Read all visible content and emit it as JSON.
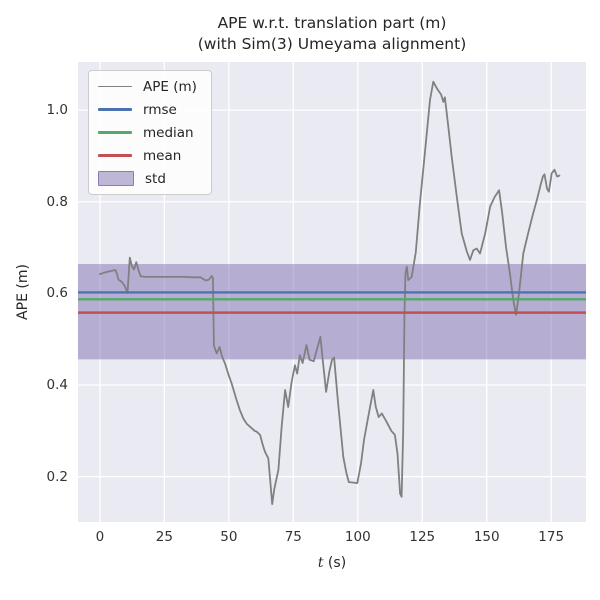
{
  "chart_data": {
    "type": "line",
    "title": "APE w.r.t. translation part (m)",
    "subtitle": "(with Sim(3) Umeyama alignment)",
    "xlabel": "t (s)",
    "xlabel_italic": "t",
    "xlabel_rest": " (s)",
    "ylabel": "APE (m)",
    "xlim": [
      -8.5,
      188.5
    ],
    "ylim": [
      0.101,
      1.105
    ],
    "xticks": [
      0,
      25,
      50,
      75,
      100,
      125,
      150,
      175
    ],
    "yticks": [
      0.2,
      0.4,
      0.6,
      0.8,
      1.0
    ],
    "grid": true,
    "background_color": "#eaeaf2",
    "grid_color": "#ffffff",
    "legend_position": "upper left",
    "series": [
      {
        "name": "std",
        "type": "band",
        "color": "#8172b2",
        "opacity": 0.5,
        "range": [
          0.456,
          0.664
        ]
      },
      {
        "name": "APE (m)",
        "type": "line",
        "color": "#808080",
        "width": 1.8,
        "points": [
          [
            0,
            0.642
          ],
          [
            1.5,
            0.645
          ],
          [
            3,
            0.647
          ],
          [
            4.5,
            0.649
          ],
          [
            6,
            0.651
          ],
          [
            6.6,
            0.643
          ],
          [
            7.2,
            0.63
          ],
          [
            8.5,
            0.625
          ],
          [
            9.6,
            0.616
          ],
          [
            10.7,
            0.601
          ],
          [
            11.6,
            0.678
          ],
          [
            12.4,
            0.659
          ],
          [
            13.2,
            0.652
          ],
          [
            14.1,
            0.668
          ],
          [
            15,
            0.65
          ],
          [
            15.8,
            0.637
          ],
          [
            18,
            0.636
          ],
          [
            21,
            0.636
          ],
          [
            24,
            0.636
          ],
          [
            27,
            0.636
          ],
          [
            30,
            0.636
          ],
          [
            33,
            0.636
          ],
          [
            36,
            0.635
          ],
          [
            39,
            0.635
          ],
          [
            41,
            0.628
          ],
          [
            42.3,
            0.63
          ],
          [
            43.3,
            0.638
          ],
          [
            43.8,
            0.634
          ],
          [
            44.2,
            0.486
          ],
          [
            45.3,
            0.469
          ],
          [
            46.4,
            0.483
          ],
          [
            47.4,
            0.462
          ],
          [
            48.5,
            0.447
          ],
          [
            50,
            0.42
          ],
          [
            51.1,
            0.403
          ],
          [
            53,
            0.367
          ],
          [
            54.3,
            0.345
          ],
          [
            55.6,
            0.327
          ],
          [
            57,
            0.315
          ],
          [
            58.2,
            0.309
          ],
          [
            60,
            0.3
          ],
          [
            60.8,
            0.298
          ],
          [
            62.1,
            0.291
          ],
          [
            63,
            0.272
          ],
          [
            64,
            0.254
          ],
          [
            65.3,
            0.24
          ],
          [
            66,
            0.195
          ],
          [
            66.8,
            0.14
          ],
          [
            67.6,
            0.172
          ],
          [
            69.2,
            0.215
          ],
          [
            70.5,
            0.31
          ],
          [
            71.8,
            0.389
          ],
          [
            73,
            0.352
          ],
          [
            74.3,
            0.405
          ],
          [
            75.6,
            0.443
          ],
          [
            76.5,
            0.425
          ],
          [
            77.5,
            0.465
          ],
          [
            78.6,
            0.448
          ],
          [
            80.1,
            0.487
          ],
          [
            81.3,
            0.455
          ],
          [
            82.9,
            0.452
          ],
          [
            85.5,
            0.505
          ],
          [
            86.6,
            0.445
          ],
          [
            87.7,
            0.385
          ],
          [
            89,
            0.43
          ],
          [
            90,
            0.455
          ],
          [
            90.8,
            0.46
          ],
          [
            92.2,
            0.37
          ],
          [
            94.4,
            0.243
          ],
          [
            95.5,
            0.21
          ],
          [
            96.5,
            0.188
          ],
          [
            98.4,
            0.187
          ],
          [
            99.8,
            0.186
          ],
          [
            101.3,
            0.23
          ],
          [
            102.4,
            0.28
          ],
          [
            104.2,
            0.335
          ],
          [
            106,
            0.389
          ],
          [
            107,
            0.352
          ],
          [
            108.1,
            0.33
          ],
          [
            109.3,
            0.338
          ],
          [
            111.2,
            0.319
          ],
          [
            113,
            0.3
          ],
          [
            114.4,
            0.291
          ],
          [
            115.4,
            0.25
          ],
          [
            116.4,
            0.163
          ],
          [
            117,
            0.156
          ],
          [
            117.6,
            0.3
          ],
          [
            118.1,
            0.56
          ],
          [
            118.5,
            0.645
          ],
          [
            119,
            0.658
          ],
          [
            119.6,
            0.629
          ],
          [
            120.9,
            0.636
          ],
          [
            122.5,
            0.69
          ],
          [
            124.1,
            0.796
          ],
          [
            126,
            0.905
          ],
          [
            128,
            1.022
          ],
          [
            129.3,
            1.062
          ],
          [
            130.4,
            1.05
          ],
          [
            131.2,
            1.043
          ],
          [
            132.3,
            1.034
          ],
          [
            133.2,
            1.018
          ],
          [
            133.8,
            1.028
          ],
          [
            135.1,
            0.964
          ],
          [
            136.4,
            0.898
          ],
          [
            138.4,
            0.811
          ],
          [
            140.3,
            0.731
          ],
          [
            142.3,
            0.691
          ],
          [
            143.5,
            0.673
          ],
          [
            144.8,
            0.694
          ],
          [
            146.1,
            0.698
          ],
          [
            147.4,
            0.687
          ],
          [
            149.4,
            0.731
          ],
          [
            151.3,
            0.789
          ],
          [
            153,
            0.81
          ],
          [
            154.8,
            0.825
          ],
          [
            156,
            0.775
          ],
          [
            157.5,
            0.7
          ],
          [
            159,
            0.644
          ],
          [
            160.3,
            0.585
          ],
          [
            161.4,
            0.553
          ],
          [
            162.5,
            0.6
          ],
          [
            164.2,
            0.687
          ],
          [
            166,
            0.73
          ],
          [
            167.8,
            0.77
          ],
          [
            169.5,
            0.805
          ],
          [
            170.8,
            0.835
          ],
          [
            171.8,
            0.855
          ],
          [
            172.4,
            0.86
          ],
          [
            173.4,
            0.828
          ],
          [
            174.1,
            0.822
          ],
          [
            175.2,
            0.862
          ],
          [
            176.3,
            0.87
          ],
          [
            177.3,
            0.855
          ],
          [
            178.2,
            0.857
          ]
        ]
      },
      {
        "name": "rmse",
        "type": "hline",
        "color": "#4c72b0",
        "value": 0.602,
        "width": 2.4
      },
      {
        "name": "median",
        "type": "hline",
        "color": "#55a868",
        "value": 0.587,
        "width": 2.4
      },
      {
        "name": "mean",
        "type": "hline",
        "color": "#c44e52",
        "value": 0.558,
        "width": 2.4
      }
    ]
  },
  "legend": {
    "items": [
      {
        "label": "APE (m)",
        "swatch": "line",
        "color": "#808080",
        "weight": 1.8
      },
      {
        "label": "rmse",
        "swatch": "line",
        "color": "#4c72b0",
        "weight": 2.6
      },
      {
        "label": "median",
        "swatch": "line",
        "color": "#55a868",
        "weight": 2.6
      },
      {
        "label": "mean",
        "swatch": "line",
        "color": "#c44e52",
        "weight": 2.6
      },
      {
        "label": "std",
        "swatch": "patch",
        "color": "#8172b2",
        "fill_rgba": "rgba(129,114,178,0.5)",
        "border_rgba": "rgba(129,114,178,0.85)"
      }
    ]
  }
}
